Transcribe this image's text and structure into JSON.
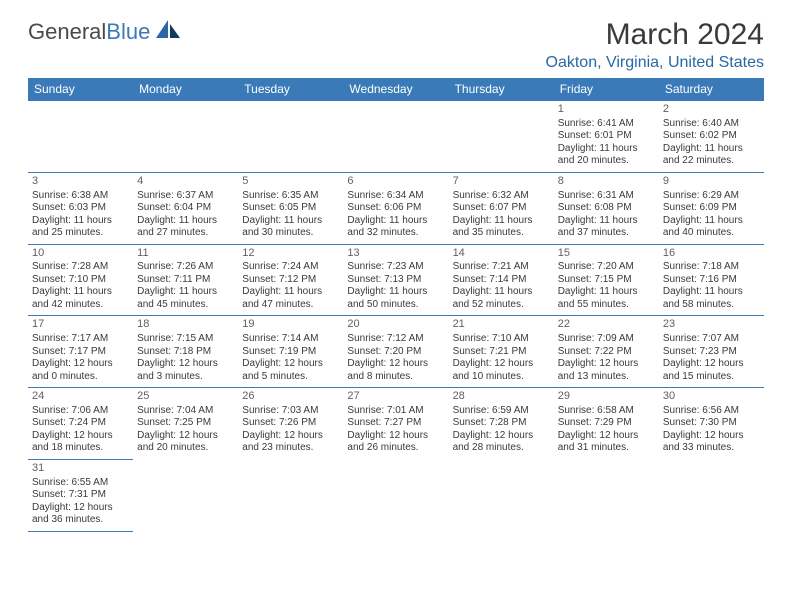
{
  "logo": {
    "text1": "General",
    "text2": "Blue"
  },
  "title": "March 2024",
  "location": "Oakton, Virginia, United States",
  "colors": {
    "header_bg": "#3a7ab8",
    "header_text": "#ffffff",
    "border": "#3a7ab8",
    "text": "#3a3a3a",
    "location_text": "#2968a5"
  },
  "days_of_week": [
    "Sunday",
    "Monday",
    "Tuesday",
    "Wednesday",
    "Thursday",
    "Friday",
    "Saturday"
  ],
  "weeks": [
    [
      null,
      null,
      null,
      null,
      null,
      {
        "n": "1",
        "sr": "Sunrise: 6:41 AM",
        "ss": "Sunset: 6:01 PM",
        "d1": "Daylight: 11 hours",
        "d2": "and 20 minutes."
      },
      {
        "n": "2",
        "sr": "Sunrise: 6:40 AM",
        "ss": "Sunset: 6:02 PM",
        "d1": "Daylight: 11 hours",
        "d2": "and 22 minutes."
      }
    ],
    [
      {
        "n": "3",
        "sr": "Sunrise: 6:38 AM",
        "ss": "Sunset: 6:03 PM",
        "d1": "Daylight: 11 hours",
        "d2": "and 25 minutes."
      },
      {
        "n": "4",
        "sr": "Sunrise: 6:37 AM",
        "ss": "Sunset: 6:04 PM",
        "d1": "Daylight: 11 hours",
        "d2": "and 27 minutes."
      },
      {
        "n": "5",
        "sr": "Sunrise: 6:35 AM",
        "ss": "Sunset: 6:05 PM",
        "d1": "Daylight: 11 hours",
        "d2": "and 30 minutes."
      },
      {
        "n": "6",
        "sr": "Sunrise: 6:34 AM",
        "ss": "Sunset: 6:06 PM",
        "d1": "Daylight: 11 hours",
        "d2": "and 32 minutes."
      },
      {
        "n": "7",
        "sr": "Sunrise: 6:32 AM",
        "ss": "Sunset: 6:07 PM",
        "d1": "Daylight: 11 hours",
        "d2": "and 35 minutes."
      },
      {
        "n": "8",
        "sr": "Sunrise: 6:31 AM",
        "ss": "Sunset: 6:08 PM",
        "d1": "Daylight: 11 hours",
        "d2": "and 37 minutes."
      },
      {
        "n": "9",
        "sr": "Sunrise: 6:29 AM",
        "ss": "Sunset: 6:09 PM",
        "d1": "Daylight: 11 hours",
        "d2": "and 40 minutes."
      }
    ],
    [
      {
        "n": "10",
        "sr": "Sunrise: 7:28 AM",
        "ss": "Sunset: 7:10 PM",
        "d1": "Daylight: 11 hours",
        "d2": "and 42 minutes."
      },
      {
        "n": "11",
        "sr": "Sunrise: 7:26 AM",
        "ss": "Sunset: 7:11 PM",
        "d1": "Daylight: 11 hours",
        "d2": "and 45 minutes."
      },
      {
        "n": "12",
        "sr": "Sunrise: 7:24 AM",
        "ss": "Sunset: 7:12 PM",
        "d1": "Daylight: 11 hours",
        "d2": "and 47 minutes."
      },
      {
        "n": "13",
        "sr": "Sunrise: 7:23 AM",
        "ss": "Sunset: 7:13 PM",
        "d1": "Daylight: 11 hours",
        "d2": "and 50 minutes."
      },
      {
        "n": "14",
        "sr": "Sunrise: 7:21 AM",
        "ss": "Sunset: 7:14 PM",
        "d1": "Daylight: 11 hours",
        "d2": "and 52 minutes."
      },
      {
        "n": "15",
        "sr": "Sunrise: 7:20 AM",
        "ss": "Sunset: 7:15 PM",
        "d1": "Daylight: 11 hours",
        "d2": "and 55 minutes."
      },
      {
        "n": "16",
        "sr": "Sunrise: 7:18 AM",
        "ss": "Sunset: 7:16 PM",
        "d1": "Daylight: 11 hours",
        "d2": "and 58 minutes."
      }
    ],
    [
      {
        "n": "17",
        "sr": "Sunrise: 7:17 AM",
        "ss": "Sunset: 7:17 PM",
        "d1": "Daylight: 12 hours",
        "d2": "and 0 minutes."
      },
      {
        "n": "18",
        "sr": "Sunrise: 7:15 AM",
        "ss": "Sunset: 7:18 PM",
        "d1": "Daylight: 12 hours",
        "d2": "and 3 minutes."
      },
      {
        "n": "19",
        "sr": "Sunrise: 7:14 AM",
        "ss": "Sunset: 7:19 PM",
        "d1": "Daylight: 12 hours",
        "d2": "and 5 minutes."
      },
      {
        "n": "20",
        "sr": "Sunrise: 7:12 AM",
        "ss": "Sunset: 7:20 PM",
        "d1": "Daylight: 12 hours",
        "d2": "and 8 minutes."
      },
      {
        "n": "21",
        "sr": "Sunrise: 7:10 AM",
        "ss": "Sunset: 7:21 PM",
        "d1": "Daylight: 12 hours",
        "d2": "and 10 minutes."
      },
      {
        "n": "22",
        "sr": "Sunrise: 7:09 AM",
        "ss": "Sunset: 7:22 PM",
        "d1": "Daylight: 12 hours",
        "d2": "and 13 minutes."
      },
      {
        "n": "23",
        "sr": "Sunrise: 7:07 AM",
        "ss": "Sunset: 7:23 PM",
        "d1": "Daylight: 12 hours",
        "d2": "and 15 minutes."
      }
    ],
    [
      {
        "n": "24",
        "sr": "Sunrise: 7:06 AM",
        "ss": "Sunset: 7:24 PM",
        "d1": "Daylight: 12 hours",
        "d2": "and 18 minutes."
      },
      {
        "n": "25",
        "sr": "Sunrise: 7:04 AM",
        "ss": "Sunset: 7:25 PM",
        "d1": "Daylight: 12 hours",
        "d2": "and 20 minutes."
      },
      {
        "n": "26",
        "sr": "Sunrise: 7:03 AM",
        "ss": "Sunset: 7:26 PM",
        "d1": "Daylight: 12 hours",
        "d2": "and 23 minutes."
      },
      {
        "n": "27",
        "sr": "Sunrise: 7:01 AM",
        "ss": "Sunset: 7:27 PM",
        "d1": "Daylight: 12 hours",
        "d2": "and 26 minutes."
      },
      {
        "n": "28",
        "sr": "Sunrise: 6:59 AM",
        "ss": "Sunset: 7:28 PM",
        "d1": "Daylight: 12 hours",
        "d2": "and 28 minutes."
      },
      {
        "n": "29",
        "sr": "Sunrise: 6:58 AM",
        "ss": "Sunset: 7:29 PM",
        "d1": "Daylight: 12 hours",
        "d2": "and 31 minutes."
      },
      {
        "n": "30",
        "sr": "Sunrise: 6:56 AM",
        "ss": "Sunset: 7:30 PM",
        "d1": "Daylight: 12 hours",
        "d2": "and 33 minutes."
      }
    ],
    [
      {
        "n": "31",
        "sr": "Sunrise: 6:55 AM",
        "ss": "Sunset: 7:31 PM",
        "d1": "Daylight: 12 hours",
        "d2": "and 36 minutes."
      },
      null,
      null,
      null,
      null,
      null,
      null
    ]
  ]
}
